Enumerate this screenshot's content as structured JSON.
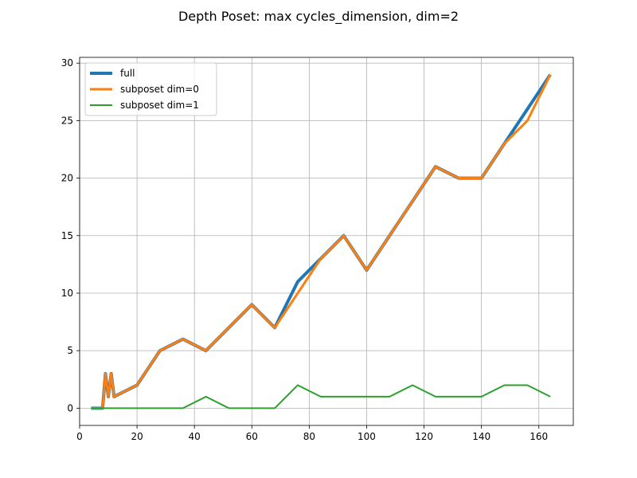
{
  "chart_data": {
    "type": "line",
    "title": "Depth Poset: max cycles_dimension, dim=2",
    "xlabel": "",
    "ylabel": "",
    "xlim": [
      0,
      172
    ],
    "ylim": [
      -1.5,
      30.5
    ],
    "xticks": [
      0,
      20,
      40,
      60,
      80,
      100,
      120,
      140,
      160
    ],
    "yticks": [
      0,
      5,
      10,
      15,
      20,
      25,
      30
    ],
    "grid": true,
    "legend_position": "upper-left",
    "series": [
      {
        "name": "full",
        "color": "#1f77b4",
        "line_width": 4,
        "x": [
          4,
          8,
          9,
          10,
          11,
          12,
          20,
          28,
          36,
          44,
          52,
          60,
          68,
          76,
          84,
          92,
          100,
          108,
          116,
          124,
          132,
          140,
          148,
          156,
          164
        ],
        "y": [
          0,
          0,
          3,
          1,
          3,
          1,
          2,
          5,
          6,
          5,
          7,
          9,
          7,
          11,
          13,
          15,
          12,
          15,
          18,
          21,
          20,
          20,
          23,
          26,
          29
        ]
      },
      {
        "name": "subposet dim=0",
        "color": "#ff7f0e",
        "line_width": 3,
        "x": [
          4,
          8,
          9,
          10,
          11,
          12,
          20,
          28,
          36,
          44,
          52,
          60,
          68,
          76,
          84,
          92,
          100,
          108,
          116,
          124,
          132,
          140,
          148,
          156,
          164
        ],
        "y": [
          0,
          0,
          3,
          1,
          3,
          1,
          2,
          5,
          6,
          5,
          7,
          9,
          7,
          10,
          13,
          15,
          12,
          15,
          18,
          21,
          20,
          20,
          23,
          25,
          29
        ]
      },
      {
        "name": "subposet dim=1",
        "color": "#2ca02c",
        "line_width": 2,
        "x": [
          4,
          8,
          12,
          20,
          28,
          36,
          44,
          52,
          60,
          68,
          76,
          84,
          92,
          100,
          108,
          116,
          124,
          132,
          140,
          148,
          156,
          164
        ],
        "y": [
          0,
          0,
          0,
          0,
          0,
          0,
          1,
          0,
          0,
          0,
          2,
          1,
          1,
          1,
          1,
          2,
          1,
          1,
          1,
          2,
          2,
          1
        ]
      }
    ]
  }
}
